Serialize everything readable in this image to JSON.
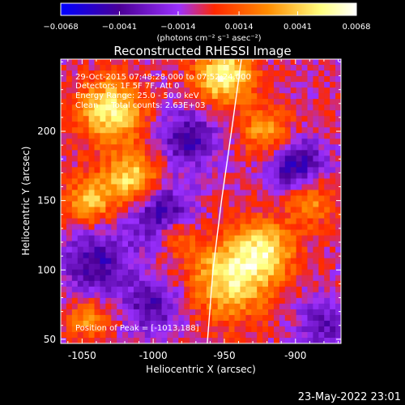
{
  "chart_data": {
    "type": "heatmap",
    "title": "Reconstructed RHESSI Image",
    "xlabel": "Heliocentric X (arcsec)",
    "ylabel": "Heliocentric Y (arcsec)",
    "xlim": [
      -1065,
      -868
    ],
    "ylim": [
      47,
      252
    ],
    "x_ticks": [
      -1050,
      -1000,
      -950,
      -900
    ],
    "y_ticks": [
      50,
      100,
      150,
      200
    ],
    "colorbar": {
      "ticks": [
        -0.0068,
        -0.0041,
        -0.0014,
        0.0014,
        0.0041,
        0.0068
      ],
      "range": [
        -0.0068,
        0.0068
      ],
      "units_text": "(photons cm⁻² s⁻¹ asec⁻²)",
      "colors": [
        "#0000ff",
        "#4b0096",
        "#9b30ff",
        "#ff2800",
        "#ff8c00",
        "#ffff80",
        "#ffffff"
      ]
    },
    "annotations": [
      "29-Oct-2015 07:48:28.000 to 07:52:24.000",
      "Detectors: 1F 5F 7F, Att 0",
      "Energy Range: 25.0 - 50.0 keV",
      "Clean     Total counts: 2.63E+03"
    ],
    "peak_text": "Position of Peak = [-1013,188]",
    "peak_position": [
      -1013,
      188
    ],
    "limb_curve": [
      [
        -962,
        47
      ],
      [
        -958,
        100
      ],
      [
        -952,
        150
      ],
      [
        -945,
        200
      ],
      [
        -938,
        252
      ]
    ],
    "blobs": [
      {
        "x": -1030,
        "y": 215,
        "amp": 1.0,
        "s": 16
      },
      {
        "x": -1015,
        "y": 165,
        "amp": 0.95,
        "s": 14
      },
      {
        "x": -1045,
        "y": 150,
        "amp": 0.7,
        "s": 12
      },
      {
        "x": -950,
        "y": 240,
        "amp": 1.1,
        "s": 14
      },
      {
        "x": -920,
        "y": 200,
        "amp": 0.7,
        "s": 12
      },
      {
        "x": -890,
        "y": 150,
        "amp": 0.6,
        "s": 12
      },
      {
        "x": -945,
        "y": 95,
        "amp": 1.0,
        "s": 20
      },
      {
        "x": -920,
        "y": 115,
        "amp": 0.8,
        "s": 14
      },
      {
        "x": -985,
        "y": 125,
        "amp": 0.6,
        "s": 10
      },
      {
        "x": -1045,
        "y": 65,
        "amp": 0.6,
        "s": 10
      },
      {
        "x": -975,
        "y": 195,
        "amp": -0.7,
        "s": 14
      },
      {
        "x": -995,
        "y": 140,
        "amp": -0.8,
        "s": 16
      },
      {
        "x": -1040,
        "y": 105,
        "amp": -0.7,
        "s": 16
      },
      {
        "x": -900,
        "y": 175,
        "amp": -0.8,
        "s": 14
      },
      {
        "x": -880,
        "y": 60,
        "amp": -0.5,
        "s": 14
      },
      {
        "x": -1000,
        "y": 75,
        "amp": -0.6,
        "s": 14
      }
    ]
  },
  "footer": {
    "date_text": "23-May-2022 23:01"
  }
}
